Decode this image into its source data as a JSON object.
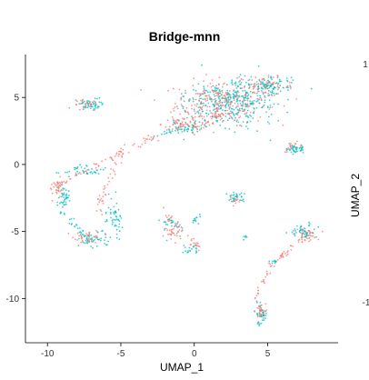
{
  "chart_data": {
    "type": "scatter",
    "title": "Bridge-mnn",
    "xlabel": "UMAP_1",
    "ylabel": "UMAP_2",
    "xlim": [
      -11.5,
      9.8
    ],
    "ylim": [
      -13.3,
      8.2
    ],
    "xticks": [
      -10,
      -5,
      0,
      5
    ],
    "yticks": [
      5,
      0,
      -5,
      -10
    ],
    "grid": false,
    "legend": "none",
    "colors": {
      "series_a": "#f8766d",
      "series_b": "#00bfc4",
      "axis": "#000000"
    },
    "series": [
      {
        "color_key": "series_a",
        "clusters": [
          {
            "cx": 1.8,
            "cy": 4.6,
            "sx": 2.6,
            "sy": 1.4,
            "n": 260
          },
          {
            "cx": 4.8,
            "cy": 5.8,
            "sx": 1.6,
            "sy": 0.6,
            "n": 70
          },
          {
            "cx": -0.8,
            "cy": 3.0,
            "sx": 1.2,
            "sy": 0.6,
            "n": 60
          },
          {
            "cx": -7.4,
            "cy": 4.4,
            "sx": 0.7,
            "sy": 0.35,
            "n": 30
          },
          {
            "cx": -9.2,
            "cy": -1.8,
            "sx": 0.35,
            "sy": 0.6,
            "n": 30
          },
          {
            "cx": -7.2,
            "cy": -5.4,
            "sx": 0.8,
            "sy": 0.4,
            "n": 40
          },
          {
            "cx": 6.8,
            "cy": 1.3,
            "sx": 0.6,
            "sy": 0.3,
            "n": 20
          },
          {
            "cx": 2.8,
            "cy": -2.6,
            "sx": 0.4,
            "sy": 0.2,
            "n": 15
          },
          {
            "cx": 7.6,
            "cy": -5.2,
            "sx": 0.6,
            "sy": 0.4,
            "n": 40
          },
          {
            "cx": 4.5,
            "cy": -11.0,
            "sx": 0.3,
            "sy": 0.5,
            "n": 30
          },
          {
            "cx": -1.5,
            "cy": -5.2,
            "sx": 0.5,
            "sy": 0.6,
            "n": 25
          }
        ],
        "paths": [
          {
            "x0": -9.9,
            "y0": -1.8,
            "x1": -2.5,
            "y1": 2.2,
            "n": 70,
            "spread": 0.3
          },
          {
            "x0": -4.8,
            "y0": 1.6,
            "x1": -6.6,
            "y1": -3.6,
            "n": 40,
            "spread": 0.3
          },
          {
            "x0": -2.2,
            "y0": -3.4,
            "x1": 0.3,
            "y1": -6.4,
            "n": 40,
            "spread": 0.3
          },
          {
            "x0": 5.2,
            "y0": -7.5,
            "x1": 7.6,
            "y1": -5.4,
            "n": 35,
            "spread": 0.2
          },
          {
            "x0": 4.0,
            "y0": -10.0,
            "x1": 5.4,
            "y1": -7.6,
            "n": 20,
            "spread": 0.2
          },
          {
            "x0": -0.2,
            "y0": 2.3,
            "x1": 1.8,
            "y1": 3.8,
            "n": 30,
            "spread": 0.3
          }
        ]
      },
      {
        "color_key": "series_b",
        "clusters": [
          {
            "cx": 2.5,
            "cy": 4.6,
            "sx": 2.6,
            "sy": 1.4,
            "n": 340
          },
          {
            "cx": 5.0,
            "cy": 5.9,
            "sx": 1.4,
            "sy": 0.5,
            "n": 90
          },
          {
            "cx": -0.5,
            "cy": 2.8,
            "sx": 1.0,
            "sy": 0.5,
            "n": 40
          },
          {
            "cx": -7.1,
            "cy": 4.5,
            "sx": 0.7,
            "sy": 0.4,
            "n": 45
          },
          {
            "cx": -8.9,
            "cy": -2.4,
            "sx": 0.4,
            "sy": 0.9,
            "n": 40
          },
          {
            "cx": -7.8,
            "cy": -0.6,
            "sx": 1.2,
            "sy": 0.35,
            "n": 40
          },
          {
            "cx": -5.4,
            "cy": -4.0,
            "sx": 0.5,
            "sy": 1.4,
            "n": 50
          },
          {
            "cx": -6.8,
            "cy": -5.6,
            "sx": 0.9,
            "sy": 0.5,
            "n": 40
          },
          {
            "cx": 7.0,
            "cy": 1.1,
            "sx": 0.7,
            "sy": 0.3,
            "n": 40
          },
          {
            "cx": 2.8,
            "cy": -2.4,
            "sx": 0.5,
            "sy": 0.3,
            "n": 30
          },
          {
            "cx": 7.4,
            "cy": -5.0,
            "sx": 0.7,
            "sy": 0.4,
            "n": 45
          },
          {
            "cx": 4.6,
            "cy": -11.2,
            "sx": 0.35,
            "sy": 0.6,
            "n": 40
          },
          {
            "cx": -1.6,
            "cy": -4.6,
            "sx": 0.5,
            "sy": 0.7,
            "n": 25
          },
          {
            "cx": -0.2,
            "cy": -6.3,
            "sx": 0.5,
            "sy": 0.3,
            "n": 20
          },
          {
            "cx": 0.1,
            "cy": -4.1,
            "sx": 0.3,
            "sy": 0.3,
            "n": 12
          },
          {
            "cx": 3.5,
            "cy": -5.4,
            "sx": 0.2,
            "sy": 0.2,
            "n": 6
          },
          {
            "cx": 5.4,
            "cy": -7.3,
            "sx": 0.3,
            "sy": 0.2,
            "n": 10
          }
        ],
        "paths": [
          {
            "x0": -9.0,
            "y0": -3.4,
            "x1": -7.0,
            "y1": -5.8,
            "n": 30,
            "spread": 0.3
          },
          {
            "x0": -3.0,
            "y0": 2.0,
            "x1": -0.5,
            "y1": 2.8,
            "n": 20,
            "spread": 0.3
          }
        ]
      }
    ]
  },
  "offscreen_labels": {
    "right_top": "1",
    "right_bottom": "-1"
  }
}
